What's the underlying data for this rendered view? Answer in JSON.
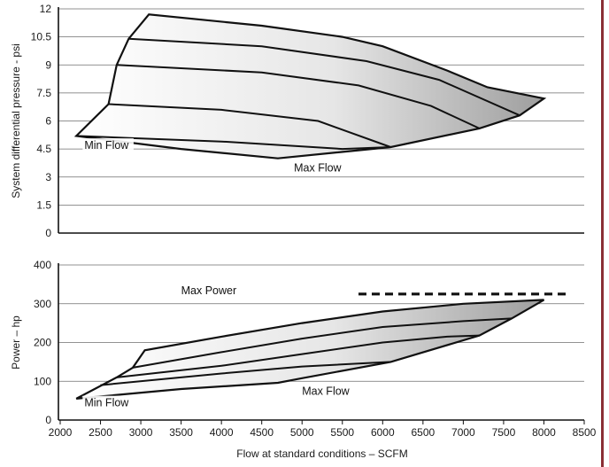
{
  "accent_border_color": "#8b2f35",
  "chart_data": [
    {
      "type": "area",
      "panel": "top",
      "ylabel": "System differential pressure - psi",
      "xlabel": "",
      "ylim": [
        0,
        12
      ],
      "yticks": [
        "0",
        "1.5",
        "3",
        "4.5",
        "6",
        "7.5",
        "9",
        "10.5",
        "12"
      ],
      "grid": true,
      "envelope": [
        [
          2200,
          5.2
        ],
        [
          2600,
          6.9
        ],
        [
          2700,
          9.0
        ],
        [
          2850,
          10.4
        ],
        [
          3100,
          11.7
        ],
        [
          4500,
          11.1
        ],
        [
          5500,
          10.5
        ],
        [
          6000,
          10.0
        ],
        [
          6800,
          8.7
        ],
        [
          7300,
          7.8
        ],
        [
          8000,
          7.2
        ],
        [
          7700,
          6.3
        ],
        [
          7200,
          5.6
        ],
        [
          6100,
          4.6
        ],
        [
          4700,
          4.0
        ],
        [
          3500,
          4.5
        ],
        [
          2200,
          5.2
        ]
      ],
      "series": [
        {
          "values": [
            [
              2850,
              10.4
            ],
            [
              4500,
              10.0
            ],
            [
              5800,
              9.2
            ],
            [
              6700,
              8.2
            ],
            [
              7700,
              6.3
            ]
          ]
        },
        {
          "values": [
            [
              2700,
              9.0
            ],
            [
              4500,
              8.6
            ],
            [
              5700,
              7.9
            ],
            [
              6600,
              6.8
            ],
            [
              7200,
              5.6
            ]
          ]
        },
        {
          "values": [
            [
              2600,
              6.9
            ],
            [
              4000,
              6.6
            ],
            [
              5200,
              6.0
            ],
            [
              6100,
              4.6
            ]
          ]
        },
        {
          "values": [
            [
              2200,
              5.2
            ],
            [
              4000,
              4.9
            ],
            [
              5500,
              4.5
            ],
            [
              6100,
              4.6
            ]
          ]
        }
      ],
      "annotations": [
        {
          "text": "Min Flow",
          "x": 2300,
          "y": 4.5
        },
        {
          "text": "Max Flow",
          "x": 4900,
          "y": 3.3
        }
      ]
    },
    {
      "type": "area",
      "panel": "bottom",
      "ylabel": "Power – hp",
      "xlabel": "Flow at standard conditions – SCFM",
      "ylim": [
        0,
        400
      ],
      "xlim": [
        2000,
        8500
      ],
      "yticks": [
        "0",
        "100",
        "200",
        "300",
        "400"
      ],
      "xticks": [
        "2000",
        "2500",
        "3000",
        "3500",
        "4000",
        "4500",
        "5000",
        "5500",
        "6000",
        "6500",
        "7000",
        "7500",
        "8000",
        "8500"
      ],
      "grid": true,
      "envelope": [
        [
          2200,
          55
        ],
        [
          2700,
          110
        ],
        [
          2900,
          135
        ],
        [
          3050,
          180
        ],
        [
          4000,
          215
        ],
        [
          5000,
          250
        ],
        [
          6000,
          280
        ],
        [
          7000,
          300
        ],
        [
          8000,
          310
        ],
        [
          7600,
          262
        ],
        [
          7200,
          218
        ],
        [
          6100,
          150
        ],
        [
          5000,
          108
        ],
        [
          4700,
          96
        ],
        [
          3500,
          80
        ],
        [
          2200,
          55
        ]
      ],
      "series": [
        {
          "values": [
            [
              2900,
              135
            ],
            [
              4000,
              175
            ],
            [
              5000,
              210
            ],
            [
              6000,
              240
            ],
            [
              7000,
              255
            ],
            [
              7600,
              262
            ]
          ]
        },
        {
          "values": [
            [
              2700,
              110
            ],
            [
              4000,
              140
            ],
            [
              5000,
              170
            ],
            [
              6000,
              200
            ],
            [
              6800,
              215
            ],
            [
              7200,
              218
            ]
          ]
        },
        {
          "values": [
            [
              2500,
              90
            ],
            [
              4000,
              120
            ],
            [
              5000,
              138
            ],
            [
              6100,
              150
            ]
          ]
        },
        {
          "name": "Max Power",
          "style": "dashed",
          "values": [
            [
              5700,
              325
            ],
            [
              8300,
              325
            ]
          ]
        }
      ],
      "annotations": [
        {
          "text": "Max Power",
          "x": 3500,
          "y": 325
        },
        {
          "text": "Max Flow",
          "x": 5000,
          "y": 65
        },
        {
          "text": "Min Flow",
          "x": 2300,
          "y": 35
        }
      ]
    }
  ]
}
